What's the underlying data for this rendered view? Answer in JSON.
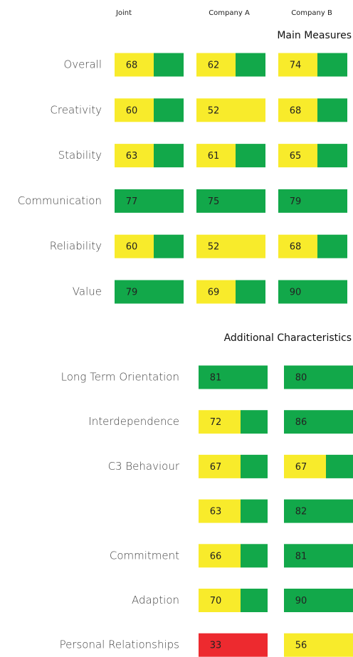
{
  "headers": [
    "Joint",
    "Company A",
    "Company B"
  ],
  "sections": [
    {
      "title": "Main Measures",
      "columns": [
        0,
        1,
        2
      ],
      "rows": [
        {
          "label": "Overall",
          "cells": [
            {
              "value": 68,
              "color": [
                "#f8eb2b",
                "#12a84a"
              ]
            },
            {
              "value": 62,
              "color": [
                "#f8eb2b",
                "#12a84a"
              ]
            },
            {
              "value": 74,
              "color": [
                "#f8eb2b",
                "#12a84a"
              ]
            }
          ]
        },
        {
          "label": "Creativity",
          "cells": [
            {
              "value": 60,
              "color": [
                "#f8eb2b",
                "#12a84a"
              ]
            },
            {
              "value": 52,
              "color": [
                "#f8eb2b"
              ]
            },
            {
              "value": 68,
              "color": [
                "#f8eb2b",
                "#12a84a"
              ]
            }
          ]
        },
        {
          "label": "Stability",
          "cells": [
            {
              "value": 63,
              "color": [
                "#f8eb2b",
                "#12a84a"
              ]
            },
            {
              "value": 61,
              "color": [
                "#f8eb2b",
                "#12a84a"
              ]
            },
            {
              "value": 65,
              "color": [
                "#f8eb2b",
                "#12a84a"
              ]
            }
          ]
        },
        {
          "label": "Communication",
          "cells": [
            {
              "value": 77,
              "color": [
                "#12a84a"
              ]
            },
            {
              "value": 75,
              "color": [
                "#12a84a"
              ]
            },
            {
              "value": 79,
              "color": [
                "#12a84a"
              ]
            }
          ]
        },
        {
          "label": "Reliability",
          "cells": [
            {
              "value": 60,
              "color": [
                "#f8eb2b",
                "#12a84a"
              ]
            },
            {
              "value": 52,
              "color": [
                "#f8eb2b"
              ]
            },
            {
              "value": 68,
              "color": [
                "#f8eb2b",
                "#12a84a"
              ]
            }
          ]
        },
        {
          "label": "Value",
          "cells": [
            {
              "value": 79,
              "color": [
                "#12a84a"
              ]
            },
            {
              "value": 69,
              "color": [
                "#f8eb2b",
                "#12a84a"
              ]
            },
            {
              "value": 90,
              "color": [
                "#12a84a"
              ]
            }
          ]
        }
      ]
    },
    {
      "title": "Additional Characteristics",
      "columns": [
        1,
        2
      ],
      "rows": [
        {
          "label": "Long Term Orientation",
          "cells": [
            {
              "value": 81,
              "color": [
                "#12a84a"
              ]
            },
            {
              "value": 80,
              "color": [
                "#12a84a"
              ]
            }
          ]
        },
        {
          "label": "Interdependence",
          "cells": [
            {
              "value": 72,
              "color": [
                "#f8eb2b",
                "#12a84a"
              ]
            },
            {
              "value": 86,
              "color": [
                "#12a84a"
              ]
            }
          ]
        },
        {
          "label": "C3 Behaviour",
          "cells": [
            {
              "value": 67,
              "color": [
                "#f8eb2b",
                "#12a84a"
              ]
            },
            {
              "value": 67,
              "color": [
                "#f8eb2b",
                "#12a84a"
              ]
            }
          ]
        },
        {
          "label": null,
          "cells": [
            {
              "value": 63,
              "color": [
                "#f8eb2b",
                "#12a84a"
              ]
            },
            {
              "value": 82,
              "color": [
                "#12a84a"
              ]
            }
          ]
        },
        {
          "label": "Commitment",
          "cells": [
            {
              "value": 66,
              "color": [
                "#f8eb2b",
                "#12a84a"
              ]
            },
            {
              "value": 81,
              "color": [
                "#12a84a"
              ]
            }
          ]
        },
        {
          "label": "Adaption",
          "cells": [
            {
              "value": 70,
              "color": [
                "#f8eb2b",
                "#12a84a"
              ]
            },
            {
              "value": 90,
              "color": [
                "#12a84a"
              ]
            }
          ]
        },
        {
          "label": "Personal Relationships",
          "cells": [
            {
              "value": 33,
              "color": [
                "#ed2a2f"
              ]
            },
            {
              "value": 56,
              "color": [
                "#f8eb2b"
              ]
            }
          ]
        }
      ]
    }
  ]
}
